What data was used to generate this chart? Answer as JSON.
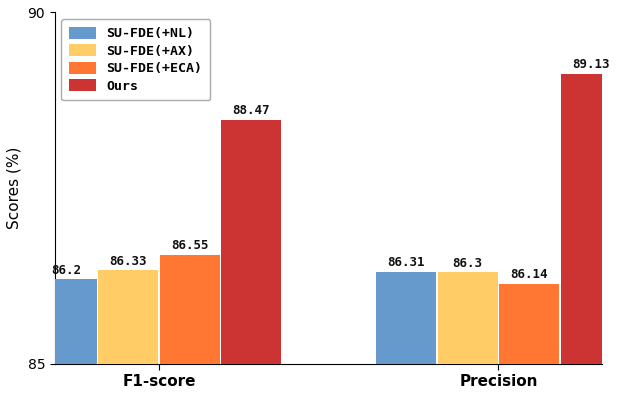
{
  "categories": [
    "F1-score",
    "Precision"
  ],
  "series": [
    {
      "label": "SU-FDE(+NL)",
      "color": "#6699CC",
      "values": [
        86.2,
        86.31
      ]
    },
    {
      "label": "SU-FDE(+AX)",
      "color": "#FFCC66",
      "values": [
        86.33,
        86.3
      ]
    },
    {
      "label": "SU-FDE(+ECA)",
      "color": "#FF7733",
      "values": [
        86.55,
        86.14
      ]
    },
    {
      "label": "Ours",
      "color": "#CC3333",
      "values": [
        88.47,
        89.13
      ]
    }
  ],
  "ylabel": "Scores (%)",
  "ylim": [
    85,
    90
  ],
  "yticks": [
    85,
    90
  ],
  "bar_width": 0.22,
  "group_centers": [
    0.38,
    1.62
  ],
  "legend_loc": "upper left",
  "label_fontsize": 9.5,
  "axis_fontsize": 11,
  "tick_fontsize": 10,
  "value_fontsize": 9,
  "value_fontweight": "bold",
  "background_color": "#ffffff"
}
